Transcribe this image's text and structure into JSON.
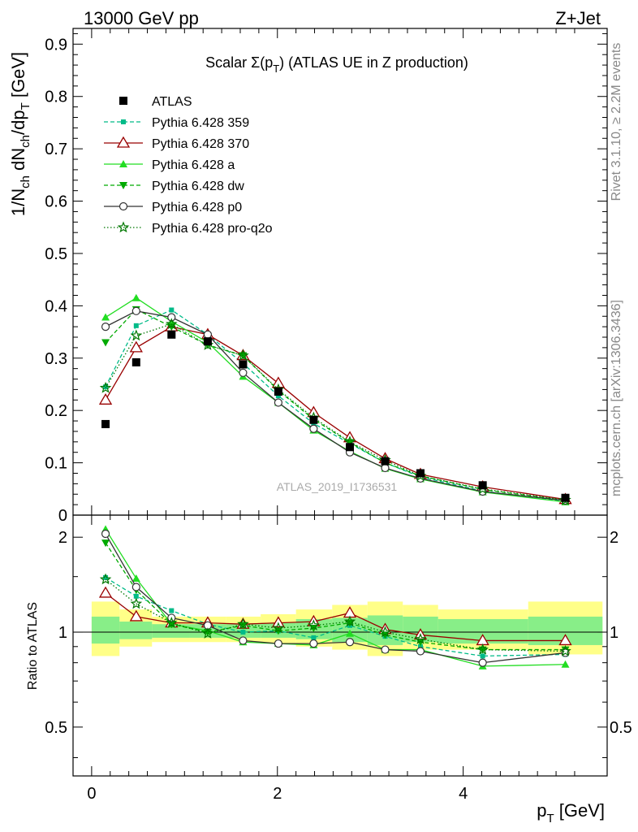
{
  "header": {
    "left": "13000 GeV pp",
    "right": "Z+Jet"
  },
  "side": {
    "rivet": "Rivet 3.1.10, ≥ 2.2M events",
    "mcplots": "mcplots.cern.ch [arXiv:1306.3436]"
  },
  "analysis_id": "ATLAS_2019_I1736531",
  "chart_data": [
    {
      "type": "scatter",
      "title": "Scalar Σ(pT) (ATLAS UE in Z production)",
      "title_main": "Scalar Σ(p",
      "title_sub": "T",
      "title_tail": ") (ATLAS UE in Z production)",
      "ylabel": "1/Nch dNch/dpT [GeV]",
      "xlim": [
        -0.2,
        5.55
      ],
      "ylim": [
        0,
        0.93
      ],
      "yticks": [
        0,
        0.1,
        0.2,
        0.3,
        0.4,
        0.5,
        0.6,
        0.7,
        0.8,
        0.9
      ],
      "ytick_labels": [
        "0",
        "0.1",
        "0.2",
        "0.3",
        "0.4",
        "0.5",
        "0.6",
        "0.7",
        "0.8",
        "0.9"
      ],
      "x": [
        0.15,
        0.48,
        0.86,
        1.25,
        1.63,
        2.01,
        2.39,
        2.78,
        3.16,
        3.54,
        4.21,
        5.1
      ],
      "data": {
        "name": "ATLAS",
        "values": [
          0.174,
          0.292,
          0.345,
          0.332,
          0.288,
          0.236,
          0.182,
          0.13,
          0.103,
          0.08,
          0.057,
          0.033
        ]
      },
      "series": [
        {
          "name": "Pythia 6.428 359",
          "color": "#00bb88",
          "dash": "5,3",
          "marker": "square-small",
          "values": [
            0.245,
            0.362,
            0.392,
            0.345,
            0.29,
            0.228,
            0.175,
            0.137,
            0.1,
            0.073,
            0.046,
            0.026
          ]
        },
        {
          "name": "Pythia 6.428 370",
          "color": "#990000",
          "dash": "",
          "marker": "triangle-open",
          "values": [
            0.22,
            0.32,
            0.36,
            0.345,
            0.305,
            0.252,
            0.196,
            0.148,
            0.108,
            0.078,
            0.054,
            0.03
          ]
        },
        {
          "name": "Pythia 6.428 a",
          "color": "#22dd22",
          "dash": "",
          "marker": "triangle-filled",
          "values": [
            0.378,
            0.415,
            0.37,
            0.33,
            0.265,
            0.215,
            0.162,
            0.122,
            0.089,
            0.069,
            0.044,
            0.025
          ]
        },
        {
          "name": "Pythia 6.428 dw",
          "color": "#00aa00",
          "dash": "5,3",
          "marker": "triangle-down",
          "values": [
            0.33,
            0.393,
            0.36,
            0.325,
            0.305,
            0.238,
            0.183,
            0.139,
            0.1,
            0.075,
            0.049,
            0.028
          ]
        },
        {
          "name": "Pythia 6.428 p0",
          "color": "#333333",
          "dash": "",
          "marker": "circle-open",
          "values": [
            0.36,
            0.39,
            0.378,
            0.345,
            0.272,
            0.215,
            0.165,
            0.12,
            0.09,
            0.07,
            0.045,
            0.028
          ]
        },
        {
          "name": "Pythia 6.428 pro-q2o",
          "color": "#007700",
          "dash": "1.5,2.5",
          "marker": "star",
          "values": [
            0.243,
            0.343,
            0.365,
            0.325,
            0.305,
            0.24,
            0.186,
            0.14,
            0.105,
            0.075,
            0.05,
            0.029
          ]
        }
      ]
    },
    {
      "type": "scatter",
      "ylabel": "Ratio to ATLAS",
      "xlabel": "pT [GeV]",
      "xlabel_main": "p",
      "xlabel_sub": "T",
      "xlabel_tail": " [GeV]",
      "xlim": [
        -0.2,
        5.55
      ],
      "ylim": [
        0.35,
        2.35
      ],
      "yscale": "log",
      "xticks": [
        0,
        2,
        4
      ],
      "xtick_labels": [
        "0",
        "2",
        "4"
      ],
      "yticks": [
        0.5,
        1,
        2
      ],
      "ytick_labels": [
        "0.5",
        "1",
        "2"
      ],
      "bands": {
        "edges": [
          0.0,
          0.3,
          0.65,
          1.05,
          1.45,
          1.82,
          2.2,
          2.59,
          2.97,
          3.35,
          3.73,
          4.7,
          5.5
        ],
        "yellow_lo": [
          0.84,
          0.9,
          0.93,
          0.93,
          0.93,
          0.92,
          0.9,
          0.88,
          0.84,
          0.88,
          0.88,
          0.85
        ],
        "yellow_hi": [
          1.25,
          1.18,
          1.12,
          1.12,
          1.12,
          1.14,
          1.18,
          1.22,
          1.25,
          1.22,
          1.18,
          1.25
        ],
        "green_lo": [
          0.92,
          0.95,
          0.96,
          0.96,
          0.96,
          0.96,
          0.95,
          0.93,
          0.91,
          0.93,
          0.92,
          0.91
        ],
        "green_hi": [
          1.12,
          1.08,
          1.06,
          1.06,
          1.06,
          1.07,
          1.1,
          1.11,
          1.13,
          1.12,
          1.1,
          1.12
        ]
      },
      "series": [
        {
          "name": "Pythia 6.428 359",
          "values": [
            1.49,
            1.3,
            1.17,
            1.06,
            1.0,
            1.01,
            0.96,
            1.05,
            0.97,
            0.9,
            0.84,
            0.85
          ]
        },
        {
          "name": "Pythia 6.428 370",
          "values": [
            1.33,
            1.12,
            1.07,
            1.07,
            1.06,
            1.07,
            1.08,
            1.15,
            1.02,
            0.98,
            0.94,
            0.94
          ]
        },
        {
          "name": "Pythia 6.428 a",
          "values": [
            2.12,
            1.48,
            1.06,
            1.01,
            0.93,
            0.92,
            0.91,
            0.99,
            0.88,
            0.88,
            0.78,
            0.79
          ]
        },
        {
          "name": "Pythia 6.428 dw",
          "values": [
            1.92,
            1.36,
            1.06,
            1.0,
            1.05,
            1.01,
            1.03,
            1.07,
            0.98,
            0.93,
            0.88,
            0.88
          ]
        },
        {
          "name": "Pythia 6.428 p0",
          "values": [
            2.05,
            1.39,
            1.11,
            1.05,
            0.94,
            0.92,
            0.92,
            0.93,
            0.88,
            0.87,
            0.8,
            0.86
          ]
        },
        {
          "name": "Pythia 6.428 pro-q2o",
          "values": [
            1.47,
            1.23,
            1.07,
            0.99,
            1.06,
            1.03,
            1.05,
            1.08,
            1.0,
            0.95,
            0.88,
            0.87
          ]
        }
      ]
    }
  ]
}
